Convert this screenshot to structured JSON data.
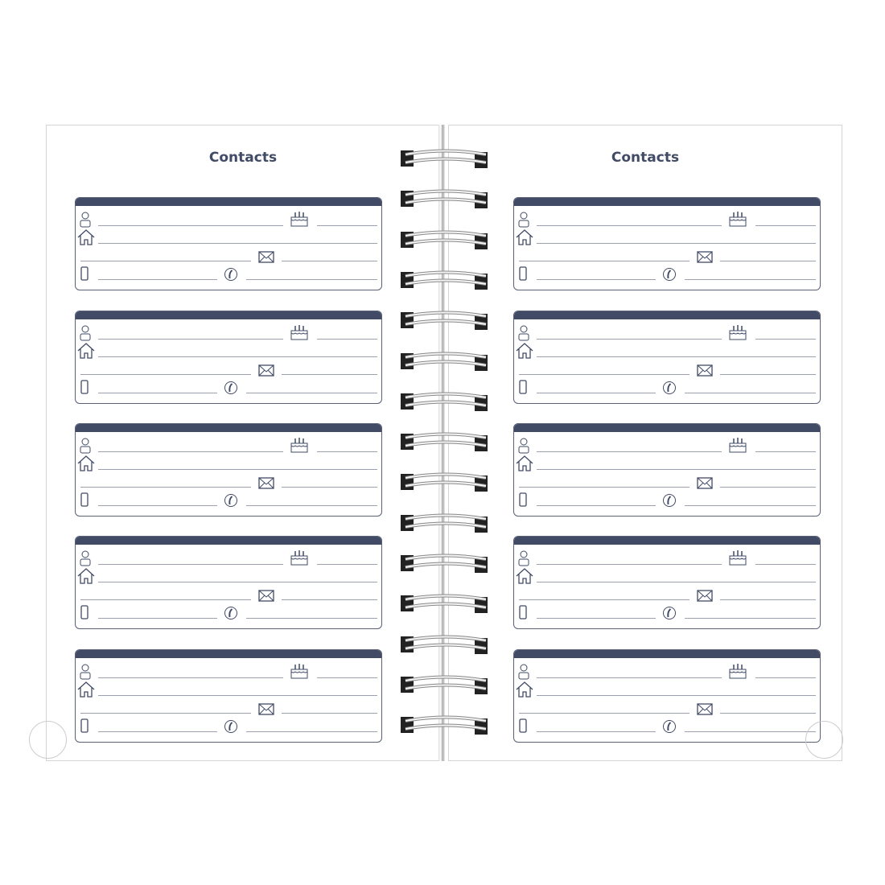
{
  "pages": [
    {
      "title": "Contacts",
      "card_count": 5
    },
    {
      "title": "Contacts",
      "card_count": 5
    }
  ],
  "colors": {
    "accent": "#414b66",
    "line": "#9da0ad"
  },
  "card_icons": [
    "person-icon",
    "birthday-cake-icon",
    "home-icon",
    "envelope-icon",
    "mobile-phone-icon",
    "telephone-icon"
  ],
  "spiral_ring_count": 15
}
